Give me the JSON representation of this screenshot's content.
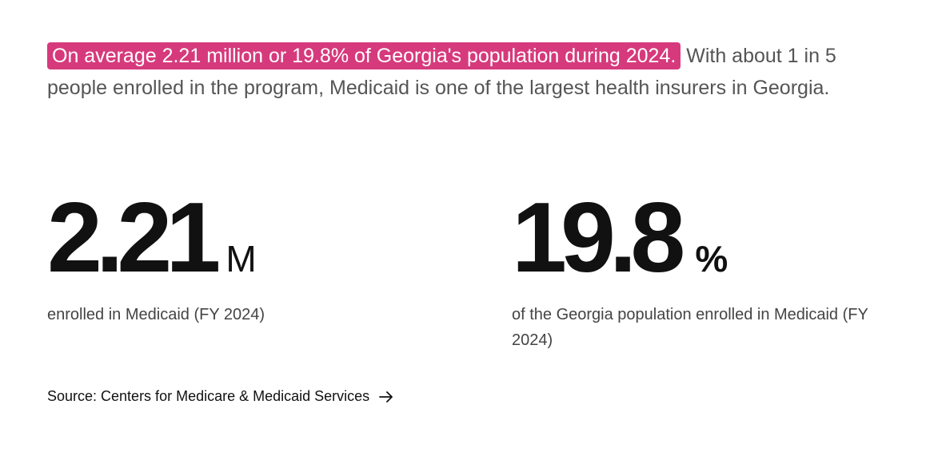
{
  "intro": {
    "highlight": "On average 2.21 million or 19.8% of Georgia's population during 2024.",
    "rest": " With about 1 in 5 people enrolled in the program, Medicaid is one of the largest health insurers in Georgia."
  },
  "stats": {
    "enrolled": {
      "value": "2.21",
      "unit": "M",
      "caption": "enrolled in Medicaid (FY 2024)"
    },
    "share": {
      "value": "19.8",
      "unit": "%",
      "caption": "of the Georgia population enrolled in Medicaid (FY 2024)"
    }
  },
  "source": {
    "label": "Source: Centers for Medicare & Medicaid Services",
    "icon": "arrow-right-icon"
  },
  "colors": {
    "highlight_bg": "#d63a7c",
    "highlight_text": "#ffffff",
    "body_text": "#555555",
    "heading_text": "#111111"
  }
}
